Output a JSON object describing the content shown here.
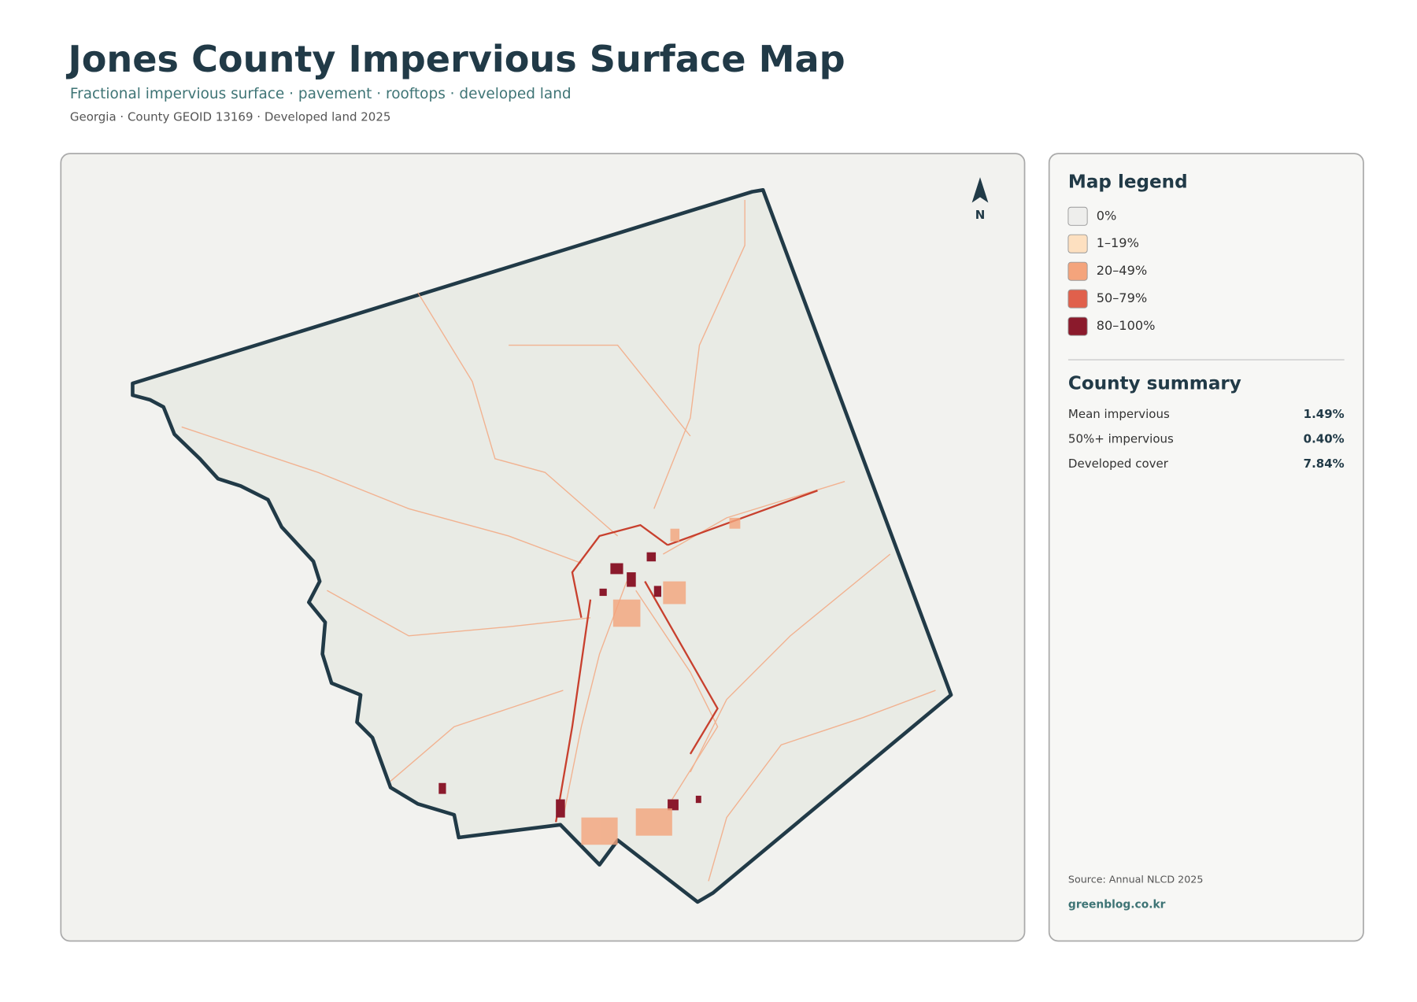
{
  "header": {
    "title": "Jones County Impervious Surface Map",
    "subtitle": "Fractional impervious surface · pavement · rooftops · developed land",
    "meta": "Georgia · County GEOID 13169 · Developed land 2025"
  },
  "map": {
    "north_label": "N"
  },
  "legend": {
    "title": "Map legend",
    "items": [
      {
        "label": "0%",
        "color": "#eeeeec"
      },
      {
        "label": "1–19%",
        "color": "#fde0c0"
      },
      {
        "label": "20–49%",
        "color": "#f4a47c"
      },
      {
        "label": "50–79%",
        "color": "#e0604c"
      },
      {
        "label": "80–100%",
        "color": "#8b1a2c"
      }
    ]
  },
  "summary": {
    "title": "County summary",
    "rows": [
      [
        "Mean impervious",
        "1.49%"
      ],
      [
        "50%+ impervious",
        "0.40%"
      ],
      [
        "Developed cover",
        "7.84%"
      ]
    ]
  },
  "footer": {
    "source": "Source: Annual NLCD 2025",
    "site": "greenblog.co.kr"
  }
}
